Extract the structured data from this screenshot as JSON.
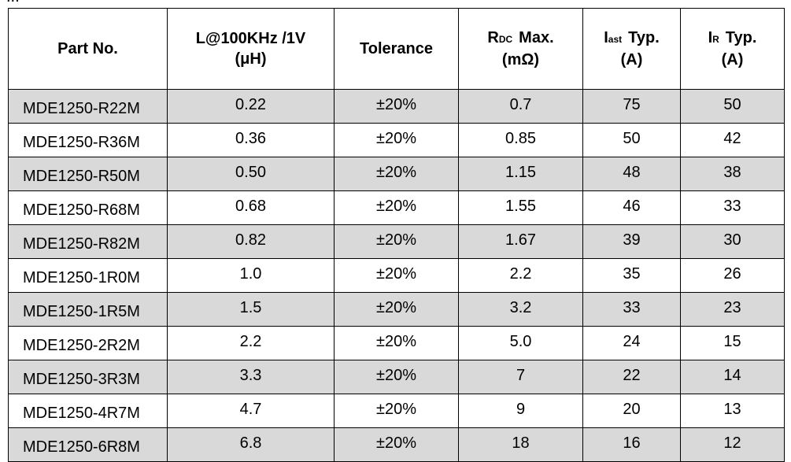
{
  "caption": "...",
  "headers": {
    "part": "Part No.",
    "inductance_line1": "L@100KHz /1V",
    "inductance_line2": "(μH)",
    "tolerance": "Tolerance",
    "rdc_symbol": "R",
    "rdc_sub": "DC",
    "rdc_suffix": "Max.",
    "rdc_unit": "(mΩ)",
    "isat_symbol": "I",
    "isat_sub": "ast",
    "isat_suffix": "Typ.",
    "isat_unit": "(A)",
    "ir_symbol": "I",
    "ir_sub": "R",
    "ir_suffix": "Typ.",
    "ir_unit": "(A)"
  },
  "rows": [
    {
      "part": "MDE1250-R22M",
      "inductance": "0.22",
      "tolerance": "±20%",
      "rdc": "0.7",
      "isat": "75",
      "ir": "50"
    },
    {
      "part": "MDE1250-R36M",
      "inductance": "0.36",
      "tolerance": "±20%",
      "rdc": "0.85",
      "isat": "50",
      "ir": "42"
    },
    {
      "part": "MDE1250-R50M",
      "inductance": "0.50",
      "tolerance": "±20%",
      "rdc": "1.15",
      "isat": "48",
      "ir": "38"
    },
    {
      "part": "MDE1250-R68M",
      "inductance": "0.68",
      "tolerance": "±20%",
      "rdc": "1.55",
      "isat": "46",
      "ir": "33"
    },
    {
      "part": "MDE1250-R82M",
      "inductance": "0.82",
      "tolerance": "±20%",
      "rdc": "1.67",
      "isat": "39",
      "ir": "30"
    },
    {
      "part": "MDE1250-1R0M",
      "inductance": "1.0",
      "tolerance": "±20%",
      "rdc": "2.2",
      "isat": "35",
      "ir": "26"
    },
    {
      "part": "MDE1250-1R5M",
      "inductance": "1.5",
      "tolerance": "±20%",
      "rdc": "3.2",
      "isat": "33",
      "ir": "23"
    },
    {
      "part": "MDE1250-2R2M",
      "inductance": "2.2",
      "tolerance": "±20%",
      "rdc": "5.0",
      "isat": "24",
      "ir": "15"
    },
    {
      "part": "MDE1250-3R3M",
      "inductance": "3.3",
      "tolerance": "±20%",
      "rdc": "7",
      "isat": "22",
      "ir": "14"
    },
    {
      "part": "MDE1250-4R7M",
      "inductance": "4.7",
      "tolerance": "±20%",
      "rdc": "9",
      "isat": "20",
      "ir": "13"
    },
    {
      "part": "MDE1250-6R8M",
      "inductance": "6.8",
      "tolerance": "±20%",
      "rdc": "18",
      "isat": "16",
      "ir": "12"
    }
  ],
  "colors": {
    "shaded_row": "#d9d9d9",
    "plain_row": "#ffffff",
    "border": "#000000"
  }
}
